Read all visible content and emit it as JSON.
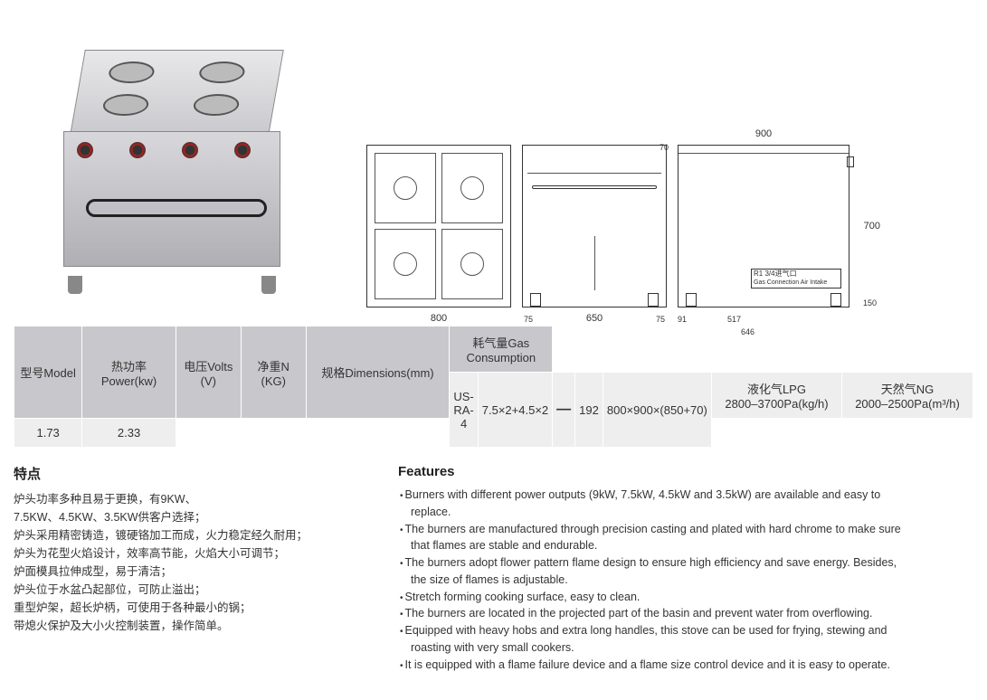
{
  "drawings": {
    "top": {
      "width_label": "800",
      "side_small_left": "75",
      "side_small_right": "75",
      "side_main": "650",
      "overall_width_top": "900",
      "height_upper": "70",
      "height_main": "700",
      "height_leg": "150",
      "inner_width": "517",
      "inner_width2": "646",
      "left_margin": "91",
      "gas_label": "R1 3/4进气口",
      "gas_sub": "Gas Connection Air Intake"
    }
  },
  "table": {
    "headers": {
      "model": "型号Model",
      "power": "热功率Power(kw)",
      "volts": "电压Volts (V)",
      "weight": "净重N (KG)",
      "dims": "规格Dimensions(mm)",
      "gas": "耗气量Gas Consumption"
    },
    "gas_sub": {
      "lpg_h": "液化气LPG\n2800–3700Pa(kg/h)",
      "ng_h": "天然气NG\n2000–2500Pa(m³/h)"
    },
    "row": {
      "model": "US-RA-4",
      "power": "7.5×2+4.5×2",
      "volts": "—",
      "weight": "192",
      "dims": "800×900×(850+70)",
      "lpg": "1.73",
      "ng": "2.33"
    }
  },
  "features_cn": {
    "heading": "特点",
    "lines": [
      "炉头功率多种且易于更换，有9KW、",
      "7.5KW、4.5KW、3.5KW供客户选择；",
      "炉头采用精密铸造，镀硬铬加工而成，火力稳定经久耐用；",
      "炉头为花型火焰设计，效率高节能，火焰大小可调节；",
      "炉面模具拉伸成型，易于清洁；",
      "炉头位于水盆凸起部位，可防止溢出；",
      "重型炉架，超长炉柄，可使用于各种最小的锅；",
      "带熄火保护及大小火控制装置，操作简单。"
    ]
  },
  "features_en": {
    "heading": "Features",
    "items": [
      {
        "main": "Burners with different power outputs (9kW, 7.5kW, 4.5kW and  3.5kW) are available and easy to",
        "sub": "replace."
      },
      {
        "main": "The burners are manufactured through precision casting and plated with hard chrome to make sure",
        "sub": "that flames are stable  and endurable."
      },
      {
        "main": "The burners adopt flower pattern flame design to ensure high efficiency and save energy. Besides,",
        "sub": "the size of flames is   adjustable."
      },
      {
        "main": "Stretch forming cooking surface, easy to clean."
      },
      {
        "main": "The burners are located in the projected part of the basin and prevent water from overflowing."
      },
      {
        "main": "Equipped with heavy hobs and extra long handles, this stove can be used for frying, stewing and",
        "sub": "roasting with very small cookers."
      },
      {
        "main": "It is equipped with a flame failure device and a flame size control device and it is easy to operate."
      }
    ]
  }
}
